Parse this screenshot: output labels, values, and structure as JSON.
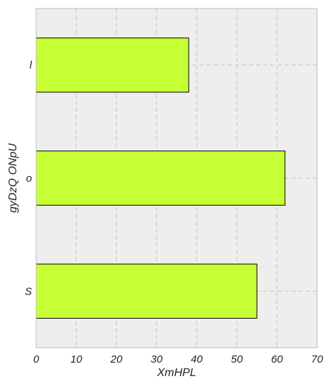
{
  "chart_data": {
    "type": "bar",
    "orientation": "horizontal",
    "title": "",
    "xlabel": "XmHPL",
    "ylabel": "gyDzQ ONpU",
    "categories": [
      "S",
      "o",
      "l"
    ],
    "values": [
      55,
      62,
      38
    ],
    "xlim": [
      0,
      70
    ],
    "xticks": [
      0,
      10,
      20,
      30,
      40,
      50,
      60,
      70
    ],
    "grid": true,
    "legend": false,
    "colors": {
      "bar_fill": "#c6ff33",
      "bar_edge": "#000000",
      "plot_background": "#eeeeee",
      "grid": "#c4c4c4",
      "frame": "#bbbbbb"
    }
  }
}
